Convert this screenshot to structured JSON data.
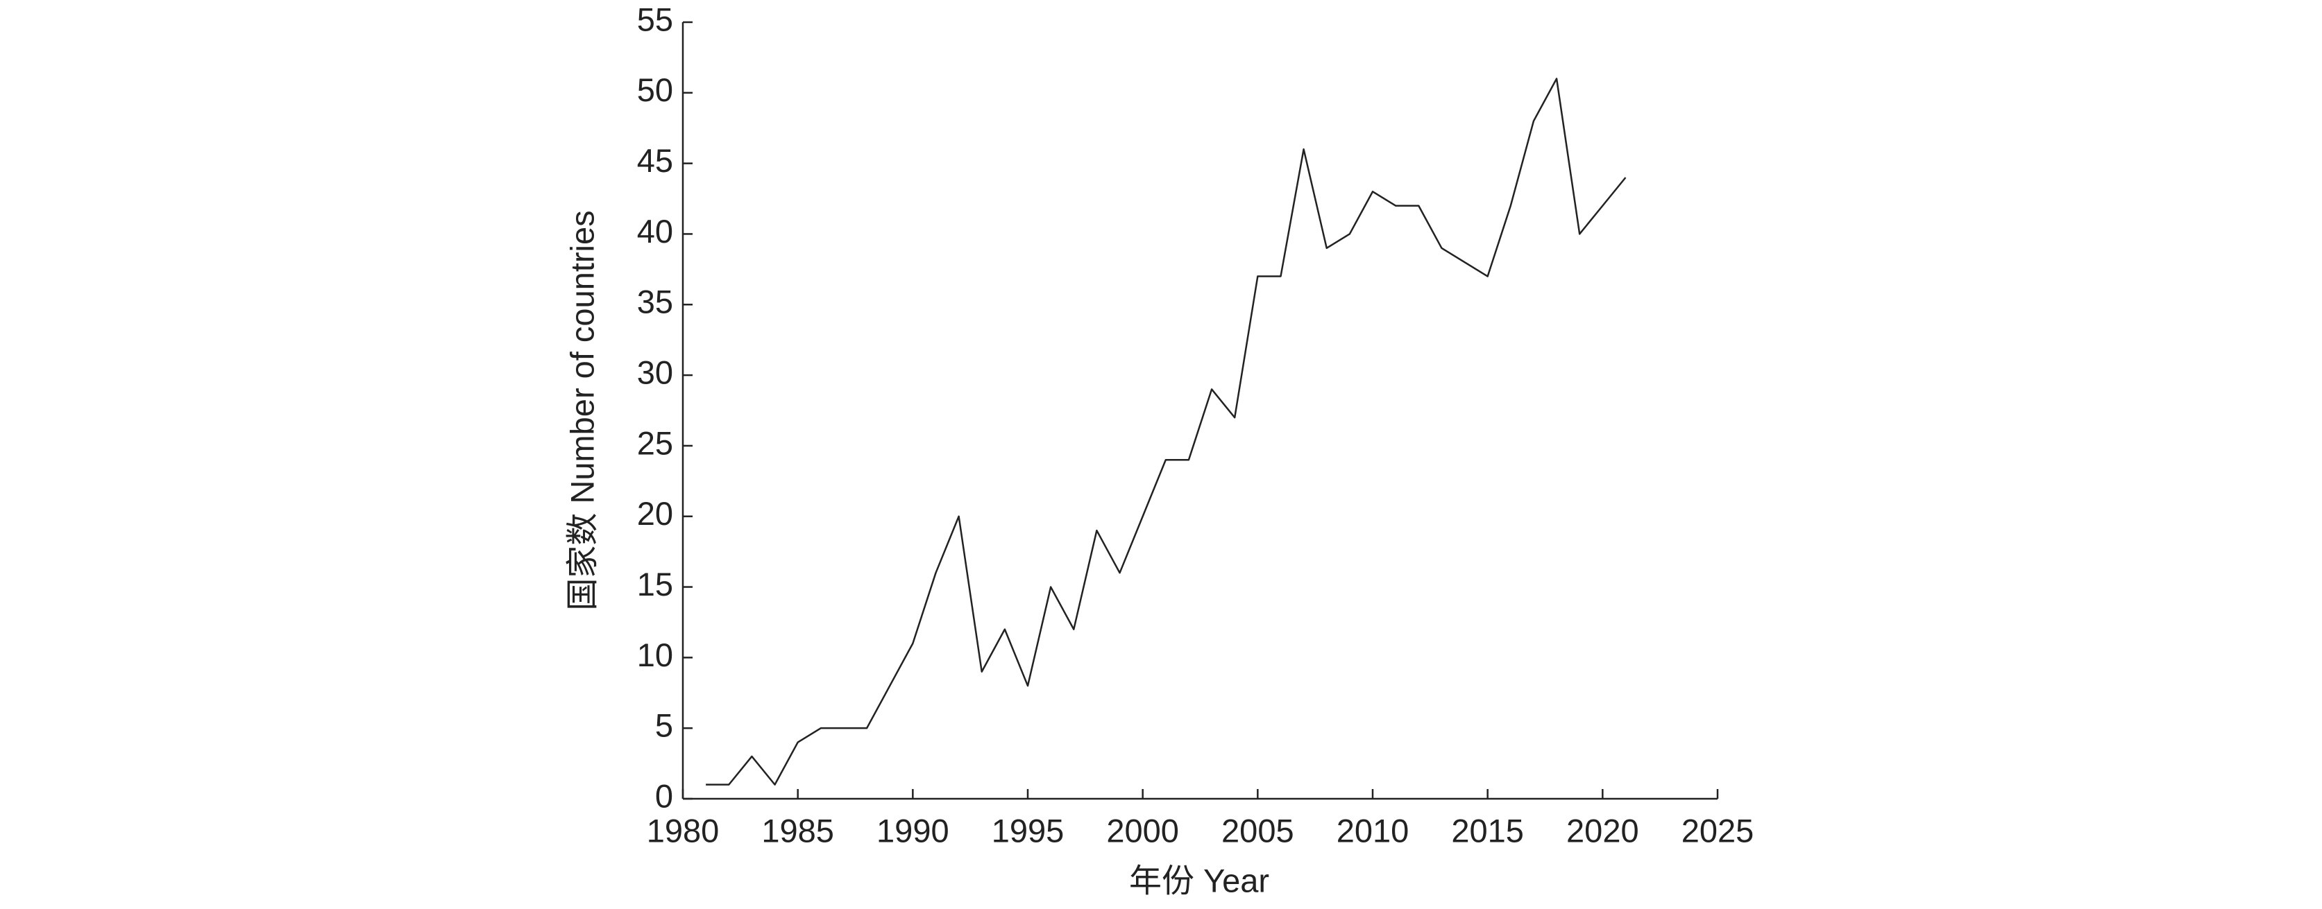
{
  "chart_data": {
    "type": "line",
    "xlabel": "年份 Year",
    "ylabel": "国家数 Number of countries",
    "x": [
      1981,
      1982,
      1983,
      1984,
      1985,
      1986,
      1987,
      1988,
      1989,
      1990,
      1991,
      1992,
      1993,
      1994,
      1995,
      1996,
      1997,
      1998,
      1999,
      2000,
      2001,
      2002,
      2003,
      2004,
      2005,
      2006,
      2007,
      2008,
      2009,
      2010,
      2011,
      2012,
      2013,
      2014,
      2015,
      2016,
      2017,
      2018,
      2019,
      2020,
      2021
    ],
    "series": [
      {
        "color": "#222222",
        "values": [
          1,
          1,
          3,
          1,
          4,
          5,
          5,
          5,
          8,
          11,
          16,
          20,
          9,
          12,
          8,
          15,
          12,
          19,
          16,
          20,
          24,
          24,
          29,
          27,
          37,
          37,
          46,
          39,
          40,
          43,
          42,
          42,
          39,
          38,
          37,
          42,
          48,
          51,
          40,
          42,
          44
        ]
      }
    ],
    "xlim": [
      1980,
      2025
    ],
    "xticks": [
      1980,
      1985,
      1990,
      1995,
      2000,
      2005,
      2010,
      2015,
      2020,
      2025
    ],
    "ylim": [
      0,
      55
    ],
    "yticks": [
      0,
      5,
      10,
      15,
      20,
      25,
      30,
      35,
      40,
      45,
      50,
      55
    ],
    "grid": false
  }
}
